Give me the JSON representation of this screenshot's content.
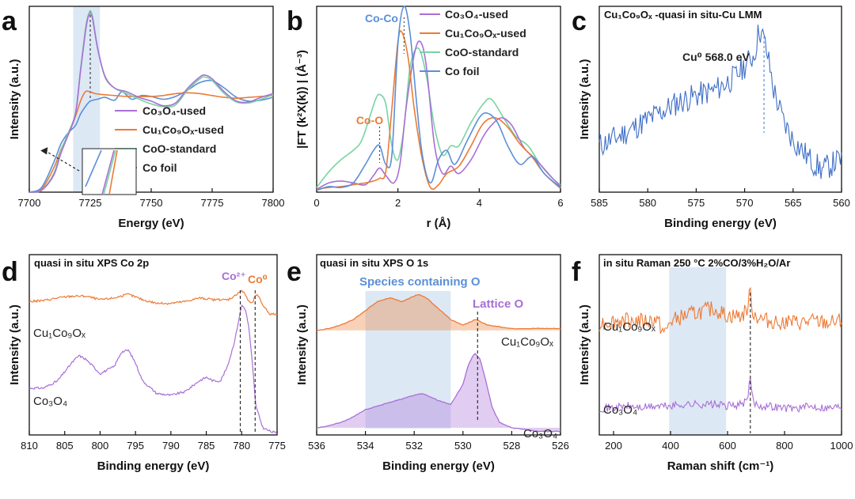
{
  "colors": {
    "purple": "#a86fd6",
    "orange": "#ec7a35",
    "green": "#78d4a2",
    "blue": "#5b8fd8",
    "dark_blue": "#3f6fc7",
    "shade": "#dde8f5"
  },
  "chart_data": [
    {
      "id": "a",
      "type": "line",
      "panel_label": "a",
      "xlabel": "Energy (eV)",
      "ylabel": "Intensity (a.u.)",
      "xlim": [
        7700,
        7800
      ],
      "ylim": [
        0,
        2
      ],
      "xticks": [
        7700,
        7725,
        7750,
        7775,
        7800
      ],
      "shaded_region": [
        7718,
        7729
      ],
      "marker_line_x": 7725,
      "series": [
        {
          "name": "Co3O4-used",
          "legend_label": "Co₃O₄-used",
          "color_key": "purple",
          "x": [
            7700,
            7705,
            7710,
            7713,
            7716,
            7719,
            7721,
            7723,
            7724,
            7725,
            7726,
            7728,
            7731,
            7735,
            7740,
            7745,
            7750,
            7755,
            7760,
            7765,
            7770,
            7772,
            7775,
            7780,
            7785,
            7790,
            7795,
            7800
          ],
          "y": [
            0.0,
            0.02,
            0.18,
            0.42,
            0.62,
            0.85,
            1.3,
            1.72,
            1.87,
            1.92,
            1.86,
            1.55,
            1.25,
            1.12,
            1.08,
            1.02,
            0.98,
            0.93,
            0.96,
            1.12,
            1.24,
            1.26,
            1.22,
            1.08,
            0.98,
            0.97,
            1.02,
            1.06
          ]
        },
        {
          "name": "Cu1Co9Ox-used",
          "legend_label": "Cu₁Co₉Oₓ-used",
          "color_key": "orange",
          "x": [
            7700,
            7705,
            7710,
            7713,
            7716,
            7719,
            7721,
            7723,
            7725,
            7727,
            7730,
            7735,
            7740,
            7745,
            7750,
            7755,
            7760,
            7765,
            7770,
            7775,
            7780,
            7785,
            7790,
            7795,
            7800
          ],
          "y": [
            0.0,
            0.03,
            0.26,
            0.46,
            0.62,
            0.82,
            0.98,
            1.08,
            1.08,
            1.06,
            1.05,
            1.04,
            1.03,
            1.03,
            1.03,
            1.04,
            1.06,
            1.07,
            1.06,
            1.04,
            1.02,
            1.01,
            1.02,
            1.03,
            1.04
          ]
        },
        {
          "name": "CoO-standard",
          "legend_label": "CoO-standard",
          "color_key": "green",
          "x": [
            7700,
            7705,
            7710,
            7713,
            7716,
            7719,
            7721,
            7723,
            7724,
            7725,
            7726,
            7728,
            7731,
            7735,
            7740,
            7745,
            7750,
            7755,
            7760,
            7765,
            7770,
            7772,
            7775,
            7780,
            7785,
            7790,
            7795,
            7800
          ],
          "y": [
            0.0,
            0.02,
            0.2,
            0.45,
            0.64,
            0.86,
            1.32,
            1.75,
            1.89,
            1.95,
            1.88,
            1.56,
            1.24,
            1.12,
            1.06,
            1.0,
            0.95,
            0.92,
            0.94,
            1.1,
            1.22,
            1.24,
            1.2,
            1.06,
            0.97,
            0.96,
            1.0,
            1.05
          ]
        },
        {
          "name": "Co foil",
          "legend_label": "Co foil",
          "color_key": "blue",
          "x": [
            7700,
            7705,
            7710,
            7713,
            7716,
            7719,
            7721,
            7723,
            7725,
            7728,
            7731,
            7735,
            7738,
            7742,
            7746,
            7750,
            7755,
            7760,
            7765,
            7770,
            7775,
            7780,
            7785,
            7790,
            7795,
            7800
          ],
          "y": [
            0.0,
            0.05,
            0.32,
            0.52,
            0.64,
            0.72,
            0.84,
            0.92,
            0.98,
            1.0,
            1.02,
            0.99,
            1.08,
            1.0,
            1.04,
            1.03,
            1.0,
            1.03,
            1.1,
            1.18,
            1.2,
            1.12,
            1.02,
            0.98,
            0.99,
            1.02
          ]
        }
      ]
    },
    {
      "id": "b",
      "type": "line",
      "panel_label": "b",
      "xlabel": "r (Å)",
      "ylabel": "|FT (k²X(k)) | (Å⁻³)",
      "xlim": [
        0,
        6
      ],
      "ylim": [
        0,
        2
      ],
      "xticks": [
        0,
        2,
        4,
        6
      ],
      "annotations": [
        {
          "text": "Co-Co",
          "x": 2.15,
          "color_key": "blue"
        },
        {
          "text": "Co-O",
          "x": 1.55,
          "color_key": "orange"
        }
      ],
      "series": [
        {
          "name": "Co3O4-used",
          "legend_label": "Co₃O₄-used",
          "color_key": "purple",
          "x": [
            0,
            0.3,
            0.6,
            0.9,
            1.2,
            1.4,
            1.55,
            1.7,
            1.9,
            2.05,
            2.2,
            2.4,
            2.55,
            2.7,
            2.9,
            3.1,
            3.3,
            3.5,
            3.8,
            4.1,
            4.3,
            4.55,
            4.8,
            5.1,
            5.4,
            5.7,
            6.0
          ],
          "y": [
            0.03,
            0.1,
            0.12,
            0.1,
            0.08,
            0.18,
            0.26,
            0.18,
            0.1,
            0.3,
            0.9,
            1.48,
            1.62,
            1.35,
            0.5,
            0.2,
            0.28,
            0.2,
            0.35,
            0.6,
            0.72,
            0.8,
            0.72,
            0.48,
            0.35,
            0.2,
            0.06
          ]
        },
        {
          "name": "Cu1Co9Ox-used",
          "legend_label": "Cu₁Co₉Oₓ-used",
          "color_key": "orange",
          "x": [
            0,
            0.3,
            0.6,
            0.9,
            1.2,
            1.4,
            1.55,
            1.7,
            1.85,
            2.0,
            2.1,
            2.25,
            2.4,
            2.6,
            2.8,
            3.0,
            3.2,
            3.5,
            3.8,
            4.1,
            4.4,
            4.7,
            5.0,
            5.3,
            5.6,
            6.0
          ],
          "y": [
            0.03,
            0.05,
            0.06,
            0.08,
            0.1,
            0.12,
            0.15,
            0.22,
            0.9,
            1.62,
            1.72,
            1.45,
            0.9,
            0.35,
            0.05,
            0.08,
            0.2,
            0.28,
            0.5,
            0.74,
            0.8,
            0.7,
            0.52,
            0.38,
            0.2,
            0.04
          ]
        },
        {
          "name": "CoO-standard",
          "legend_label": "CoO-standard",
          "color_key": "green",
          "x": [
            0,
            0.3,
            0.6,
            0.9,
            1.1,
            1.3,
            1.45,
            1.55,
            1.7,
            1.85,
            2.0,
            2.15,
            2.3,
            2.5,
            2.7,
            2.9,
            3.1,
            3.3,
            3.5,
            3.8,
            4.1,
            4.3,
            4.6,
            4.9,
            5.2,
            5.5,
            5.8,
            6.0
          ],
          "y": [
            0.05,
            0.22,
            0.35,
            0.45,
            0.55,
            0.8,
            1.0,
            1.05,
            0.95,
            0.5,
            0.35,
            0.7,
            1.35,
            1.55,
            1.25,
            0.7,
            0.4,
            0.5,
            0.5,
            0.75,
            0.95,
            1.0,
            0.8,
            0.6,
            0.5,
            0.3,
            0.15,
            0.08
          ]
        },
        {
          "name": "Co foil",
          "legend_label": "Co foil",
          "color_key": "blue",
          "x": [
            0,
            0.3,
            0.6,
            0.9,
            1.2,
            1.4,
            1.55,
            1.7,
            1.85,
            2.0,
            2.15,
            2.3,
            2.45,
            2.6,
            2.8,
            3.0,
            3.2,
            3.4,
            3.7,
            4.0,
            4.2,
            4.45,
            4.7,
            5.0,
            5.3,
            5.6,
            6.0
          ],
          "y": [
            0.02,
            0.06,
            0.05,
            0.1,
            0.3,
            0.45,
            0.5,
            0.3,
            0.4,
            1.6,
            2.0,
            1.7,
            1.0,
            0.4,
            0.1,
            0.35,
            0.45,
            0.3,
            0.55,
            0.8,
            0.85,
            0.75,
            0.5,
            0.3,
            0.38,
            0.2,
            0.05
          ]
        }
      ]
    },
    {
      "id": "c",
      "type": "line",
      "panel_label": "c",
      "title": "Cu₁Co₉Oₓ -quasi in situ-Cu LMM",
      "xlabel": "Binding energy (eV)",
      "ylabel": "Intensity (a.u.)",
      "xlim": [
        585,
        560
      ],
      "ylim": [
        0,
        1
      ],
      "xticks": [
        585,
        580,
        575,
        570,
        565,
        560
      ],
      "marker_line_x": 568.0,
      "peak_label": "Cu⁰ 568.0 eV",
      "series": [
        {
          "name": "Cu LMM",
          "color_key": "blue",
          "x": [
            585,
            583,
            581,
            579,
            577,
            575,
            573,
            571,
            570,
            569,
            568.5,
            568,
            567.5,
            567,
            566,
            565,
            564,
            563,
            562,
            561,
            560
          ],
          "y": [
            0.25,
            0.3,
            0.36,
            0.42,
            0.48,
            0.52,
            0.55,
            0.62,
            0.68,
            0.74,
            0.88,
            0.82,
            0.7,
            0.55,
            0.38,
            0.28,
            0.22,
            0.16,
            0.12,
            0.15,
            0.18
          ]
        }
      ]
    },
    {
      "id": "d",
      "type": "line",
      "panel_label": "d",
      "title": "quasi in situ XPS Co 2p",
      "xlabel": "Binding energy (eV)",
      "ylabel": "Intensity (a.u.)",
      "xlim": [
        810,
        775
      ],
      "ylim": [
        0,
        1
      ],
      "xticks": [
        810,
        805,
        800,
        795,
        790,
        785,
        780,
        775
      ],
      "marker_lines": [
        {
          "x": 780.2,
          "label": "Co²⁺",
          "color_key": "purple"
        },
        {
          "x": 778.1,
          "label": "Co⁰",
          "color_key": "orange"
        }
      ],
      "series": [
        {
          "name": "Cu1Co9Ox",
          "legend_label": "Cu₁Co₉Oₓ",
          "color_key": "orange",
          "x": [
            810,
            808,
            806,
            804,
            802,
            800,
            798,
            796,
            794,
            792,
            790,
            788,
            786,
            784,
            782,
            781,
            780.5,
            780,
            779.5,
            779,
            778.5,
            778,
            777.5,
            777,
            776,
            775
          ],
          "y": [
            0.74,
            0.745,
            0.76,
            0.77,
            0.77,
            0.75,
            0.76,
            0.78,
            0.75,
            0.73,
            0.73,
            0.74,
            0.76,
            0.75,
            0.75,
            0.77,
            0.79,
            0.8,
            0.78,
            0.74,
            0.73,
            0.78,
            0.76,
            0.72,
            0.67,
            0.67
          ]
        },
        {
          "name": "Co3O4",
          "legend_label": "Co₃O₄",
          "color_key": "purple",
          "x": [
            810,
            808,
            806,
            804,
            803,
            802,
            800,
            798,
            797,
            796,
            795,
            794,
            792,
            790,
            788,
            786,
            785,
            784,
            783,
            782,
            781,
            780.5,
            780,
            779.5,
            779,
            778.5,
            778,
            777,
            776,
            775
          ],
          "y": [
            0.26,
            0.26,
            0.3,
            0.4,
            0.44,
            0.42,
            0.34,
            0.38,
            0.46,
            0.47,
            0.4,
            0.3,
            0.23,
            0.22,
            0.24,
            0.3,
            0.32,
            0.3,
            0.3,
            0.38,
            0.52,
            0.62,
            0.72,
            0.7,
            0.6,
            0.4,
            0.16,
            0.04,
            0.02,
            0.01
          ]
        }
      ]
    },
    {
      "id": "e",
      "type": "area",
      "panel_label": "e",
      "title": "quasi in situ XPS O 1s",
      "xlabel": "Binding energy (eV)",
      "ylabel": "Intensity (a.u.)",
      "xlim": [
        536,
        526
      ],
      "ylim": [
        0,
        1
      ],
      "xticks": [
        536,
        534,
        532,
        530,
        528,
        526
      ],
      "shaded_region": [
        534,
        530.5
      ],
      "shaded_label": "Species containing O",
      "marker_line_x": 529.4,
      "marker_label": "Lattice O",
      "series": [
        {
          "name": "Cu1Co9Ox",
          "legend_label": "Cu₁Co₉Oₓ",
          "color_key": "orange",
          "x": [
            536,
            535.5,
            535,
            534.5,
            534,
            533.5,
            533,
            532.5,
            532,
            531.8,
            531.5,
            531,
            530.5,
            530,
            529.8,
            529.5,
            529.3,
            529,
            528.5,
            528,
            527,
            526
          ],
          "y": [
            0.58,
            0.59,
            0.61,
            0.64,
            0.69,
            0.74,
            0.76,
            0.74,
            0.77,
            0.78,
            0.76,
            0.7,
            0.64,
            0.61,
            0.62,
            0.64,
            0.63,
            0.61,
            0.6,
            0.59,
            0.59,
            0.59
          ]
        },
        {
          "name": "Co3O4",
          "legend_label": "Co₃O₄",
          "color_key": "purple",
          "x": [
            536,
            535.5,
            535,
            534.5,
            534,
            533.5,
            533,
            532.5,
            532,
            531.7,
            531.5,
            531,
            530.5,
            530,
            529.8,
            529.6,
            529.5,
            529.3,
            529.1,
            528.8,
            528.5,
            528,
            527,
            526
          ],
          "y": [
            0.04,
            0.05,
            0.07,
            0.1,
            0.14,
            0.16,
            0.18,
            0.2,
            0.22,
            0.23,
            0.22,
            0.19,
            0.17,
            0.28,
            0.38,
            0.44,
            0.45,
            0.42,
            0.32,
            0.15,
            0.07,
            0.04,
            0.02,
            0.02
          ]
        }
      ]
    },
    {
      "id": "f",
      "type": "line",
      "panel_label": "f",
      "title": "in situ Raman 250 °C 2%CO/3%H₂O/Ar",
      "xlabel": "Raman shift (cm⁻¹)",
      "ylabel": "Intensity (a.u.)",
      "xlim": [
        150,
        1000
      ],
      "ylim": [
        0,
        1
      ],
      "xticks": [
        200,
        400,
        600,
        800,
        1000
      ],
      "shaded_region": [
        395,
        595
      ],
      "marker_line_x": 680,
      "series": [
        {
          "name": "Cu1Co9Ox",
          "legend_label": "Cu₁Co₉Oₓ",
          "color_key": "orange",
          "x": [
            150,
            200,
            250,
            300,
            350,
            380,
            400,
            450,
            500,
            550,
            600,
            650,
            670,
            680,
            690,
            720,
            750,
            800,
            850,
            900,
            950,
            1000
          ],
          "y": [
            0.62,
            0.63,
            0.64,
            0.63,
            0.64,
            0.56,
            0.63,
            0.66,
            0.68,
            0.7,
            0.66,
            0.66,
            0.7,
            0.8,
            0.67,
            0.64,
            0.63,
            0.63,
            0.62,
            0.63,
            0.62,
            0.63
          ]
        },
        {
          "name": "Co3O4",
          "legend_label": "Co₃O₄",
          "color_key": "purple",
          "x": [
            150,
            200,
            250,
            300,
            350,
            400,
            450,
            500,
            550,
            600,
            650,
            670,
            680,
            690,
            720,
            750,
            800,
            850,
            900,
            950,
            1000
          ],
          "y": [
            0.15,
            0.15,
            0.16,
            0.15,
            0.16,
            0.16,
            0.17,
            0.17,
            0.17,
            0.16,
            0.17,
            0.19,
            0.32,
            0.18,
            0.16,
            0.16,
            0.15,
            0.15,
            0.16,
            0.15,
            0.16
          ]
        }
      ]
    }
  ]
}
